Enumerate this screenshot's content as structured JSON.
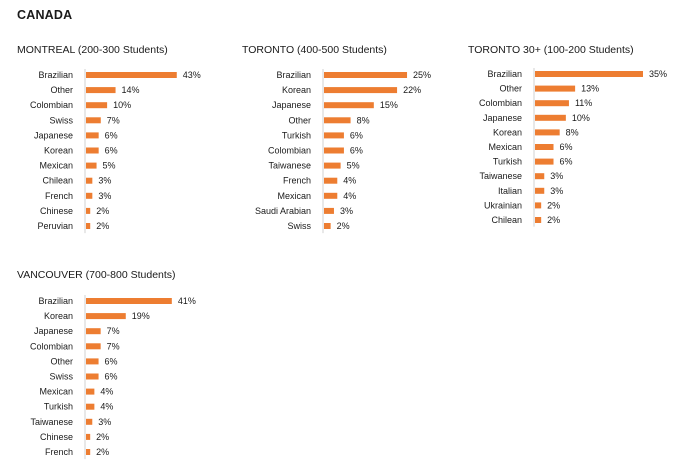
{
  "page": {
    "title": "CANADA"
  },
  "chart_data": [
    {
      "type": "bar",
      "orientation": "horizontal",
      "title": "MONTREAL (200-300 Students)",
      "categories": [
        "Brazilian",
        "Other",
        "Colombian",
        "Swiss",
        "Japanese",
        "Korean",
        "Mexican",
        "Chilean",
        "French",
        "Chinese",
        "Peruvian"
      ],
      "values": [
        43,
        14,
        10,
        7,
        6,
        6,
        5,
        3,
        3,
        2,
        2
      ],
      "value_labels": [
        "43%",
        "14%",
        "10%",
        "7%",
        "6%",
        "6%",
        "5%",
        "3%",
        "3%",
        "2%",
        "2%"
      ],
      "xlim": [
        0,
        45
      ],
      "color": "#ed7d31",
      "grid": false
    },
    {
      "type": "bar",
      "orientation": "horizontal",
      "title": "TORONTO (400-500 Students)",
      "categories": [
        "Brazilian",
        "Korean",
        "Japanese",
        "Other",
        "Turkish",
        "Colombian",
        "Taiwanese",
        "French",
        "Mexican",
        "Saudi Arabian",
        "Swiss"
      ],
      "values": [
        25,
        22,
        15,
        8,
        6,
        6,
        5,
        4,
        4,
        3,
        2
      ],
      "value_labels": [
        "25%",
        "22%",
        "15%",
        "8%",
        "6%",
        "6%",
        "5%",
        "4%",
        "4%",
        "3%",
        "2%"
      ],
      "xlim": [
        0,
        28
      ],
      "color": "#ed7d31",
      "grid": false
    },
    {
      "type": "bar",
      "orientation": "horizontal",
      "title": "TORONTO 30+ (100-200 Students)",
      "categories": [
        "Brazilian",
        "Other",
        "Colombian",
        "Japanese",
        "Korean",
        "Mexican",
        "Turkish",
        "Taiwanese",
        "Italian",
        "Ukrainian",
        "Chilean"
      ],
      "values": [
        35,
        13,
        11,
        10,
        8,
        6,
        6,
        3,
        3,
        2,
        2
      ],
      "value_labels": [
        "35%",
        "13%",
        "11%",
        "10%",
        "8%",
        "6%",
        "6%",
        "3%",
        "3%",
        "2%",
        "2%"
      ],
      "xlim": [
        0,
        35
      ],
      "color": "#ed7d31",
      "grid": false
    },
    {
      "type": "bar",
      "orientation": "horizontal",
      "title": "VANCOUVER (700-800 Students)",
      "categories": [
        "Brazilian",
        "Korean",
        "Japanese",
        "Colombian",
        "Other",
        "Swiss",
        "Mexican",
        "Turkish",
        "Taiwanese",
        "Chinese",
        "French"
      ],
      "values": [
        41,
        19,
        7,
        7,
        6,
        6,
        4,
        4,
        3,
        2,
        2
      ],
      "value_labels": [
        "41%",
        "19%",
        "7%",
        "7%",
        "6%",
        "6%",
        "4%",
        "4%",
        "3%",
        "2%",
        "2%"
      ],
      "xlim": [
        0,
        43
      ],
      "color": "#ed7d31",
      "grid": false
    }
  ]
}
